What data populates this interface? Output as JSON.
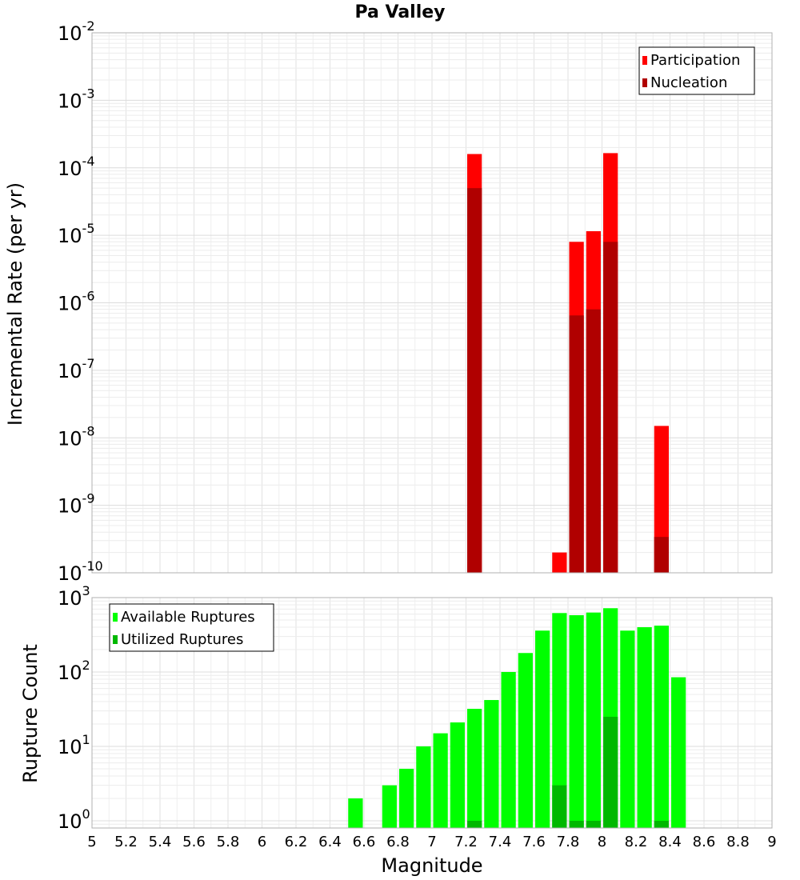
{
  "chart_data": [
    {
      "type": "bar",
      "title": "Pa Valley",
      "ylabel": "Incremental Rate (per yr)",
      "yscale": "log",
      "ylim": [
        1e-10,
        0.01
      ],
      "xlim": [
        5,
        9
      ],
      "bar_width": 0.1,
      "y_tick_exponents": [
        "-2",
        "-3",
        "-4",
        "-5",
        "-6",
        "-7",
        "-8",
        "-9",
        "-10"
      ],
      "grid": true,
      "legend_position": "top-right",
      "series": [
        {
          "name": "Participation",
          "color": "#ff0000",
          "x": [
            7.25,
            7.75,
            7.85,
            7.95,
            8.05,
            8.35
          ],
          "values": [
            0.00016,
            2e-10,
            8e-06,
            1.15e-05,
            0.000165,
            1.5e-08
          ]
        },
        {
          "name": "Nucleation",
          "color": "#b00000",
          "x": [
            7.25,
            7.85,
            7.95,
            8.05,
            8.35
          ],
          "values": [
            5e-05,
            6.5e-07,
            8e-07,
            8e-06,
            3.4e-10
          ]
        }
      ]
    },
    {
      "type": "bar",
      "xlabel": "Magnitude",
      "ylabel": "Rupture Count",
      "yscale": "log",
      "ylim": [
        0.8,
        1000
      ],
      "xlim": [
        5,
        9
      ],
      "bar_width": 0.1,
      "y_tick_exponents": [
        "3",
        "2",
        "1",
        "0"
      ],
      "x_tick_labels": [
        "5",
        "5.2",
        "5.4",
        "5.6",
        "5.8",
        "6",
        "6.2",
        "6.4",
        "6.6",
        "6.8",
        "7",
        "7.2",
        "7.4",
        "7.6",
        "7.8",
        "8",
        "8.2",
        "8.4",
        "8.6",
        "8.8",
        "9"
      ],
      "grid": true,
      "legend_position": "top-left",
      "series": [
        {
          "name": "Available Ruptures",
          "color": "#00ff00",
          "x": [
            6.55,
            6.75,
            6.85,
            6.95,
            7.05,
            7.15,
            7.25,
            7.35,
            7.45,
            7.55,
            7.65,
            7.75,
            7.85,
            7.95,
            8.05,
            8.15,
            8.25,
            8.35,
            8.45
          ],
          "values": [
            2,
            3,
            5,
            10,
            15,
            21,
            32,
            42,
            100,
            180,
            360,
            620,
            580,
            630,
            720,
            360,
            400,
            420,
            85
          ]
        },
        {
          "name": "Utilized Ruptures",
          "color": "#00b800",
          "x": [
            7.25,
            7.75,
            7.85,
            7.95,
            8.05,
            8.35
          ],
          "values": [
            1,
            3,
            1,
            1,
            25,
            1
          ]
        }
      ]
    }
  ]
}
